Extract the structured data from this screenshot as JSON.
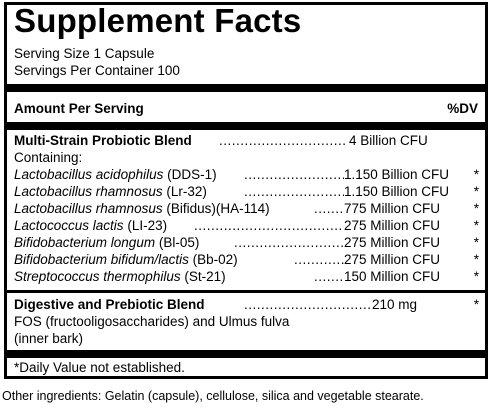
{
  "title": "Supplement Facts",
  "serving_size": "Serving Size 1 Capsule",
  "servings_per_container": "Servings Per Container 100",
  "header": {
    "amount": "Amount Per Serving",
    "dv": "%DV"
  },
  "blend1": {
    "name": "Multi-Strain Probiotic Blend",
    "amount": "4 Billion CFU",
    "containing": "Containing:",
    "items": [
      {
        "species": "Lactobacillus acidophilus",
        "strain": "(DDS-1)",
        "amount": "1.150 Billion CFU",
        "dv": "*"
      },
      {
        "species": "Lactobacillus rhamnosus",
        "strain": "(Lr-32)",
        "amount": "1.150 Billion CFU",
        "dv": "*"
      },
      {
        "species": "Lactobacillus rhamnosus",
        "strain": "(Bifidus)(HA-114)",
        "amount": "775 Million CFU",
        "dv": "*"
      },
      {
        "species": "Lactococcus lactis",
        "strain": "(LI-23)",
        "amount": "275 Million CFU",
        "dv": "*"
      },
      {
        "species": "Bifidobacterium longum",
        "strain": "(Bl-05)",
        "amount": "275 Million CFU",
        "dv": "*"
      },
      {
        "species": "Bifidobacterium bifidum/lactis",
        "strain": "(Bb-02)",
        "amount": "275 Million CFU",
        "dv": "*"
      },
      {
        "species": "Streptococcus thermophilus",
        "strain": "(St-21)",
        "amount": "150 Million CFU",
        "dv": "*"
      }
    ]
  },
  "blend2": {
    "name": "Digestive and Prebiotic Blend",
    "amount": "210 mg",
    "dv": "*",
    "desc_line1": "FOS (fructooligosaccharides) and Ulmus fulva",
    "desc_line2": "(inner bark)"
  },
  "footnote": "*Daily Value not established.",
  "other_ingredients": "Other ingredients: Gelatin (capsule), cellulose, silica and vegetable stearate."
}
